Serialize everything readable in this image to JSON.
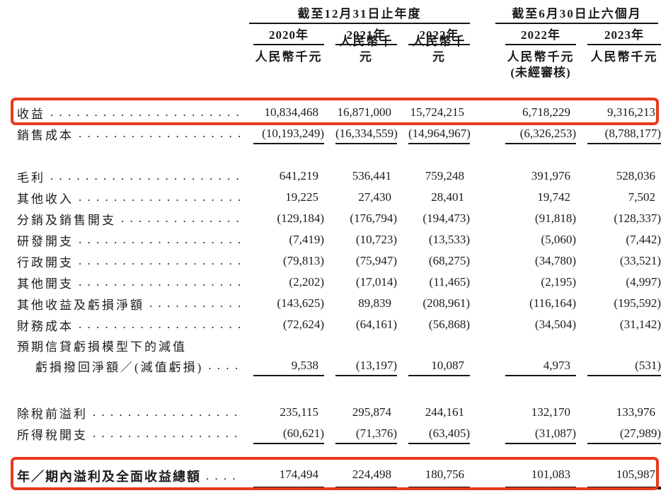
{
  "accent_red": "#e8391d",
  "rule_color": "#161616",
  "leader_dots": ". . . . . . . . . . . . . . . . . . . . . . . . . . . . . . . . . . . . . . . .",
  "header": {
    "group1": {
      "label": "截至12月31日止年度",
      "years": [
        "2020年",
        "2021年",
        "2022年"
      ]
    },
    "group2": {
      "label": "截至6月30日止六個月",
      "years": [
        "2022年",
        "2023年"
      ]
    },
    "unit": "人民幣千元",
    "unaudited_note": "(未經審核)"
  },
  "rows": [
    {
      "name": "revenue",
      "label": "收益",
      "dots": true,
      "highlighted": true,
      "values": [
        "10,834,468",
        "16,871,000",
        "15,724,215",
        "6,718,229",
        "9,316,213"
      ]
    },
    {
      "name": "cost-of-sales",
      "label": "銷售成本",
      "dots": true,
      "underline": true,
      "values": [
        "(10,193,249)",
        "(16,334,559)",
        "(14,964,967)",
        "(6,326,253)",
        "(8,788,177)"
      ]
    },
    {
      "spacer": 30
    },
    {
      "name": "gross-profit",
      "label": "毛利",
      "dots": true,
      "values": [
        "641,219",
        "536,441",
        "759,248",
        "391,976",
        "528,036"
      ]
    },
    {
      "name": "other-income",
      "label": "其他收入",
      "dots": true,
      "values": [
        "19,225",
        "27,430",
        "28,401",
        "19,742",
        "7,502"
      ]
    },
    {
      "name": "distribution-selling-expenses",
      "label": "分銷及銷售開支",
      "dots": true,
      "values": [
        "(129,184)",
        "(176,794)",
        "(194,473)",
        "(91,818)",
        "(128,337)"
      ]
    },
    {
      "name": "rd-expenses",
      "label": "研發開支",
      "dots": true,
      "values": [
        "(7,419)",
        "(10,723)",
        "(13,533)",
        "(5,060)",
        "(7,442)"
      ]
    },
    {
      "name": "admin-expenses",
      "label": "行政開支",
      "dots": true,
      "values": [
        "(79,813)",
        "(75,947)",
        "(68,275)",
        "(34,780)",
        "(33,521)"
      ]
    },
    {
      "name": "other-expenses",
      "label": "其他開支",
      "dots": true,
      "values": [
        "(2,202)",
        "(17,014)",
        "(11,465)",
        "(2,195)",
        "(4,997)"
      ]
    },
    {
      "name": "other-gains-losses-net",
      "label": "其他收益及虧損淨額",
      "dots": true,
      "values": [
        "(143,625)",
        "89,839",
        "(208,961)",
        "(116,164)",
        "(195,592)"
      ]
    },
    {
      "name": "finance-costs",
      "label": "財務成本",
      "dots": true,
      "values": [
        "(72,624)",
        "(64,161)",
        "(56,868)",
        "(34,504)",
        "(31,142)"
      ]
    },
    {
      "name": "ecl-impairment-caption",
      "label": "預期信貸虧損模型下的減值",
      "dots": false,
      "height": 28
    },
    {
      "name": "ecl-impairment-values",
      "label": "虧損撥回淨額／(減值虧損)",
      "indent": true,
      "dots": true,
      "underline": true,
      "values": [
        "9,538",
        "(13,197)",
        "10,087",
        "4,973",
        "(531)"
      ]
    },
    {
      "spacer": 36
    },
    {
      "name": "profit-before-tax",
      "label": "除稅前溢利",
      "dots": true,
      "values": [
        "235,115",
        "295,874",
        "244,161",
        "132,170",
        "133,976"
      ]
    },
    {
      "name": "income-tax-expense",
      "label": "所得稅開支",
      "dots": true,
      "underline": true,
      "values": [
        "(60,621)",
        "(71,376)",
        "(63,405)",
        "(31,087)",
        "(27,989)"
      ]
    },
    {
      "spacer": 26
    },
    {
      "name": "total-profit-and-comprehensive-income",
      "label": "年／期內溢利及全面收益總額",
      "dots": true,
      "bold": true,
      "thick_underline": true,
      "highlighted": true,
      "values": [
        "174,494",
        "224,498",
        "180,756",
        "101,083",
        "105,987"
      ]
    }
  ]
}
